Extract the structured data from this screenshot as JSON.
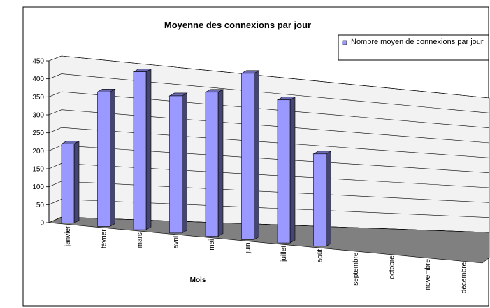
{
  "chart_data": {
    "type": "bar3d",
    "title": "Moyenne des connexions par jour",
    "x_label": "Mois",
    "categories": [
      "janvier",
      "février",
      "mars",
      "avril",
      "mai",
      "juin",
      "juillet",
      "août",
      "septembre",
      "octobre",
      "novembre",
      "décembre"
    ],
    "series": [
      {
        "name": "Nombre moyen de connexions par jour",
        "color": "#9999ff",
        "values": [
          220,
          370,
          430,
          370,
          385,
          440,
          375,
          240,
          null,
          null,
          null,
          null
        ]
      }
    ],
    "ylim": [
      0,
      450
    ],
    "yticks": [
      0,
      50,
      100,
      150,
      200,
      250,
      300,
      350,
      400,
      450
    ],
    "grid": true,
    "legend": "top-right"
  }
}
